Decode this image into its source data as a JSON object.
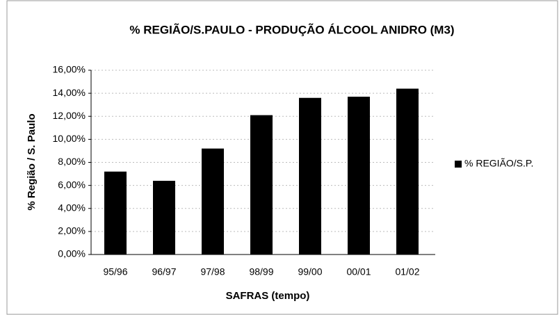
{
  "chart_data": {
    "type": "bar",
    "title": "% REGIÃO/S.PAULO - PRODUÇÃO ÁLCOOL ANIDRO (M3)",
    "x_label": "SAFRAS (tempo)",
    "y_label": "% Região / S. Paulo",
    "categories": [
      "95/96",
      "96/97",
      "97/98",
      "98/99",
      "99/00",
      "00/01",
      "01/02"
    ],
    "series": [
      {
        "name": "% REGIÃO/S.P.",
        "color": "#000000",
        "values": [
          7.2,
          6.4,
          9.2,
          12.1,
          13.6,
          13.7,
          14.4
        ]
      }
    ],
    "ylim": [
      0,
      16
    ],
    "yticks": [
      {
        "value": 0,
        "label": "0,00%"
      },
      {
        "value": 2,
        "label": "2,00%"
      },
      {
        "value": 4,
        "label": "4,00%"
      },
      {
        "value": 6,
        "label": "6,00%"
      },
      {
        "value": 8,
        "label": "8,00%"
      },
      {
        "value": 10,
        "label": "10,00%"
      },
      {
        "value": 12,
        "label": "12,00%"
      },
      {
        "value": 14,
        "label": "14,00%"
      },
      {
        "value": 16,
        "label": "16,00%"
      }
    ],
    "grid": true,
    "legend": "right"
  }
}
